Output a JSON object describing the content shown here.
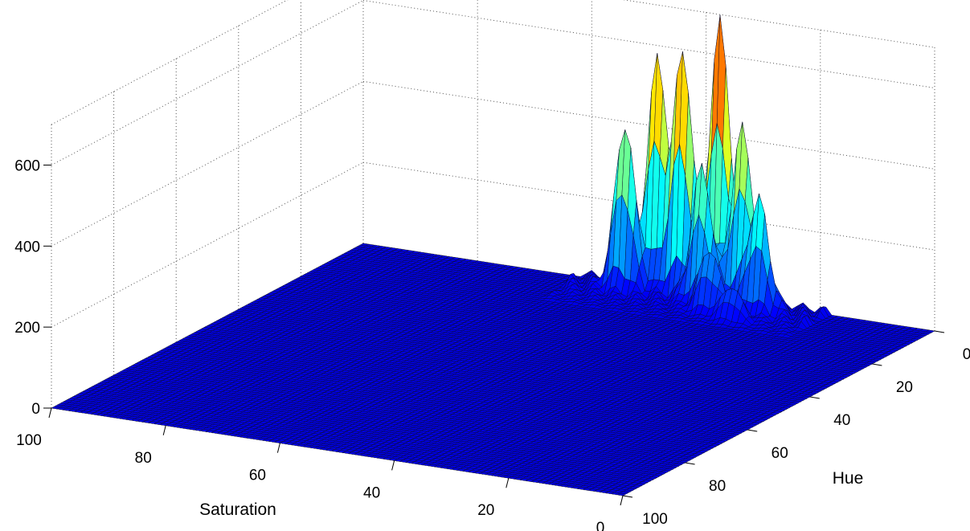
{
  "chart_data": {
    "type": "surface",
    "title": "",
    "xlabel": "Hue",
    "ylabel": "Saturation",
    "zlabel": "",
    "hue_range": [
      0,
      100
    ],
    "saturation_range": [
      0,
      100
    ],
    "zlim": [
      0,
      700
    ],
    "hue_ticks": [
      "0",
      "20",
      "40",
      "60",
      "80",
      "100"
    ],
    "saturation_ticks": [
      "0",
      "20",
      "40",
      "60",
      "80",
      "100"
    ],
    "z_ticks": [
      "0",
      "200",
      "400",
      "600"
    ],
    "grid": true,
    "colormap": "jet",
    "grid_resolution": 100,
    "peaks": [
      {
        "hue": 1,
        "saturation": 37,
        "value": 680
      },
      {
        "hue": 2,
        "saturation": 43,
        "value": 590
      },
      {
        "hue": 1,
        "saturation": 48,
        "value": 560
      },
      {
        "hue": 3,
        "saturation": 32,
        "value": 430
      },
      {
        "hue": 4,
        "saturation": 52,
        "value": 400
      },
      {
        "hue": 5,
        "saturation": 38,
        "value": 330
      },
      {
        "hue": 5,
        "saturation": 28,
        "value": 270
      },
      {
        "hue": 8,
        "saturation": 35,
        "value": 150
      },
      {
        "hue": 10,
        "saturation": 30,
        "value": 80
      }
    ]
  }
}
